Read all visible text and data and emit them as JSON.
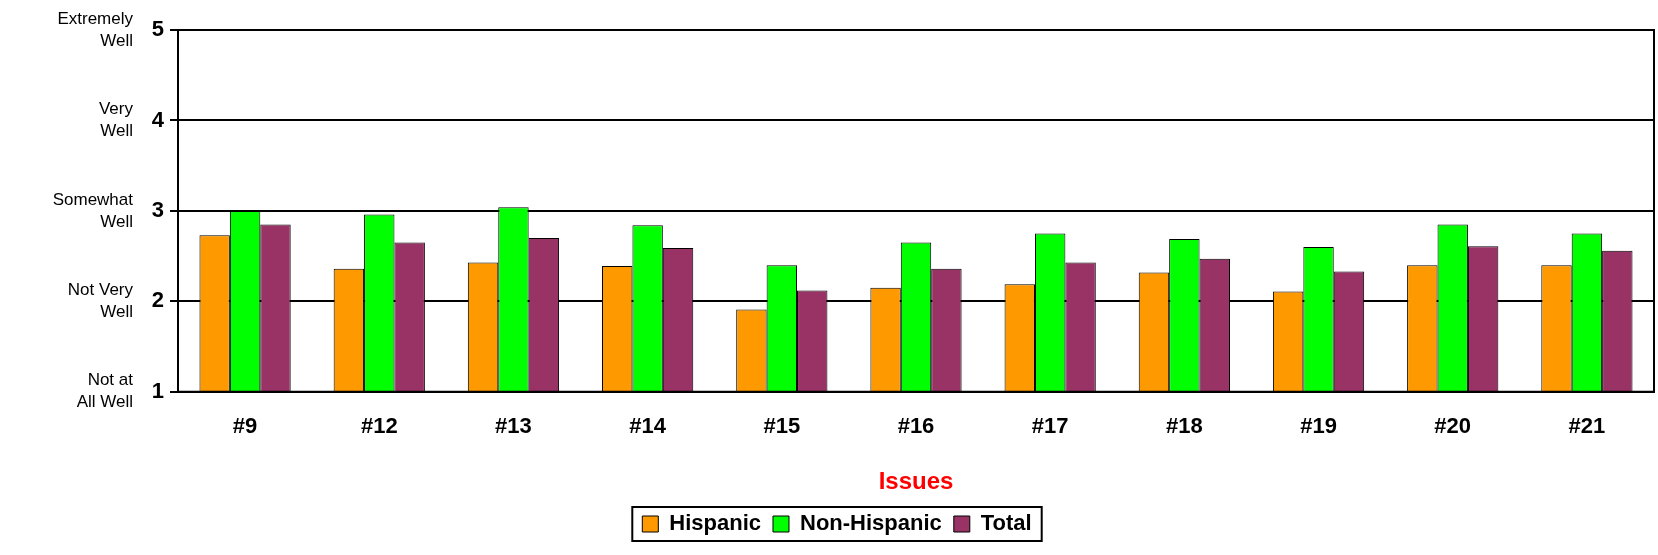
{
  "chart_data": {
    "type": "bar",
    "xlabel": "Issues",
    "categories": [
      "#9",
      "#12",
      "#13",
      "#14",
      "#15",
      "#16",
      "#17",
      "#18",
      "#19",
      "#20",
      "#21"
    ],
    "series": [
      {
        "name": "Hispanic",
        "color": "#ff9900",
        "values": [
          2.73,
          2.36,
          2.43,
          2.39,
          1.91,
          2.15,
          2.19,
          2.32,
          2.11,
          2.4,
          2.4
        ]
      },
      {
        "name": "Non-Hispanic",
        "color": "#00ff00",
        "values": [
          3.0,
          2.96,
          3.04,
          2.84,
          2.4,
          2.65,
          2.75,
          2.69,
          2.6,
          2.85,
          2.75
        ]
      },
      {
        "name": "Total",
        "color": "#993366",
        "values": [
          2.85,
          2.65,
          2.7,
          2.59,
          2.12,
          2.36,
          2.43,
          2.47,
          2.33,
          2.61,
          2.56
        ]
      }
    ],
    "ylim": [
      1,
      5
    ],
    "yticks": [
      1,
      2,
      3,
      4,
      5
    ],
    "grid": "y",
    "legend": "bottom",
    "annotations": [
      "Extremely Well",
      "Very Well",
      "Somewhat Well",
      "Not Very Well",
      "Not at All Well"
    ]
  }
}
